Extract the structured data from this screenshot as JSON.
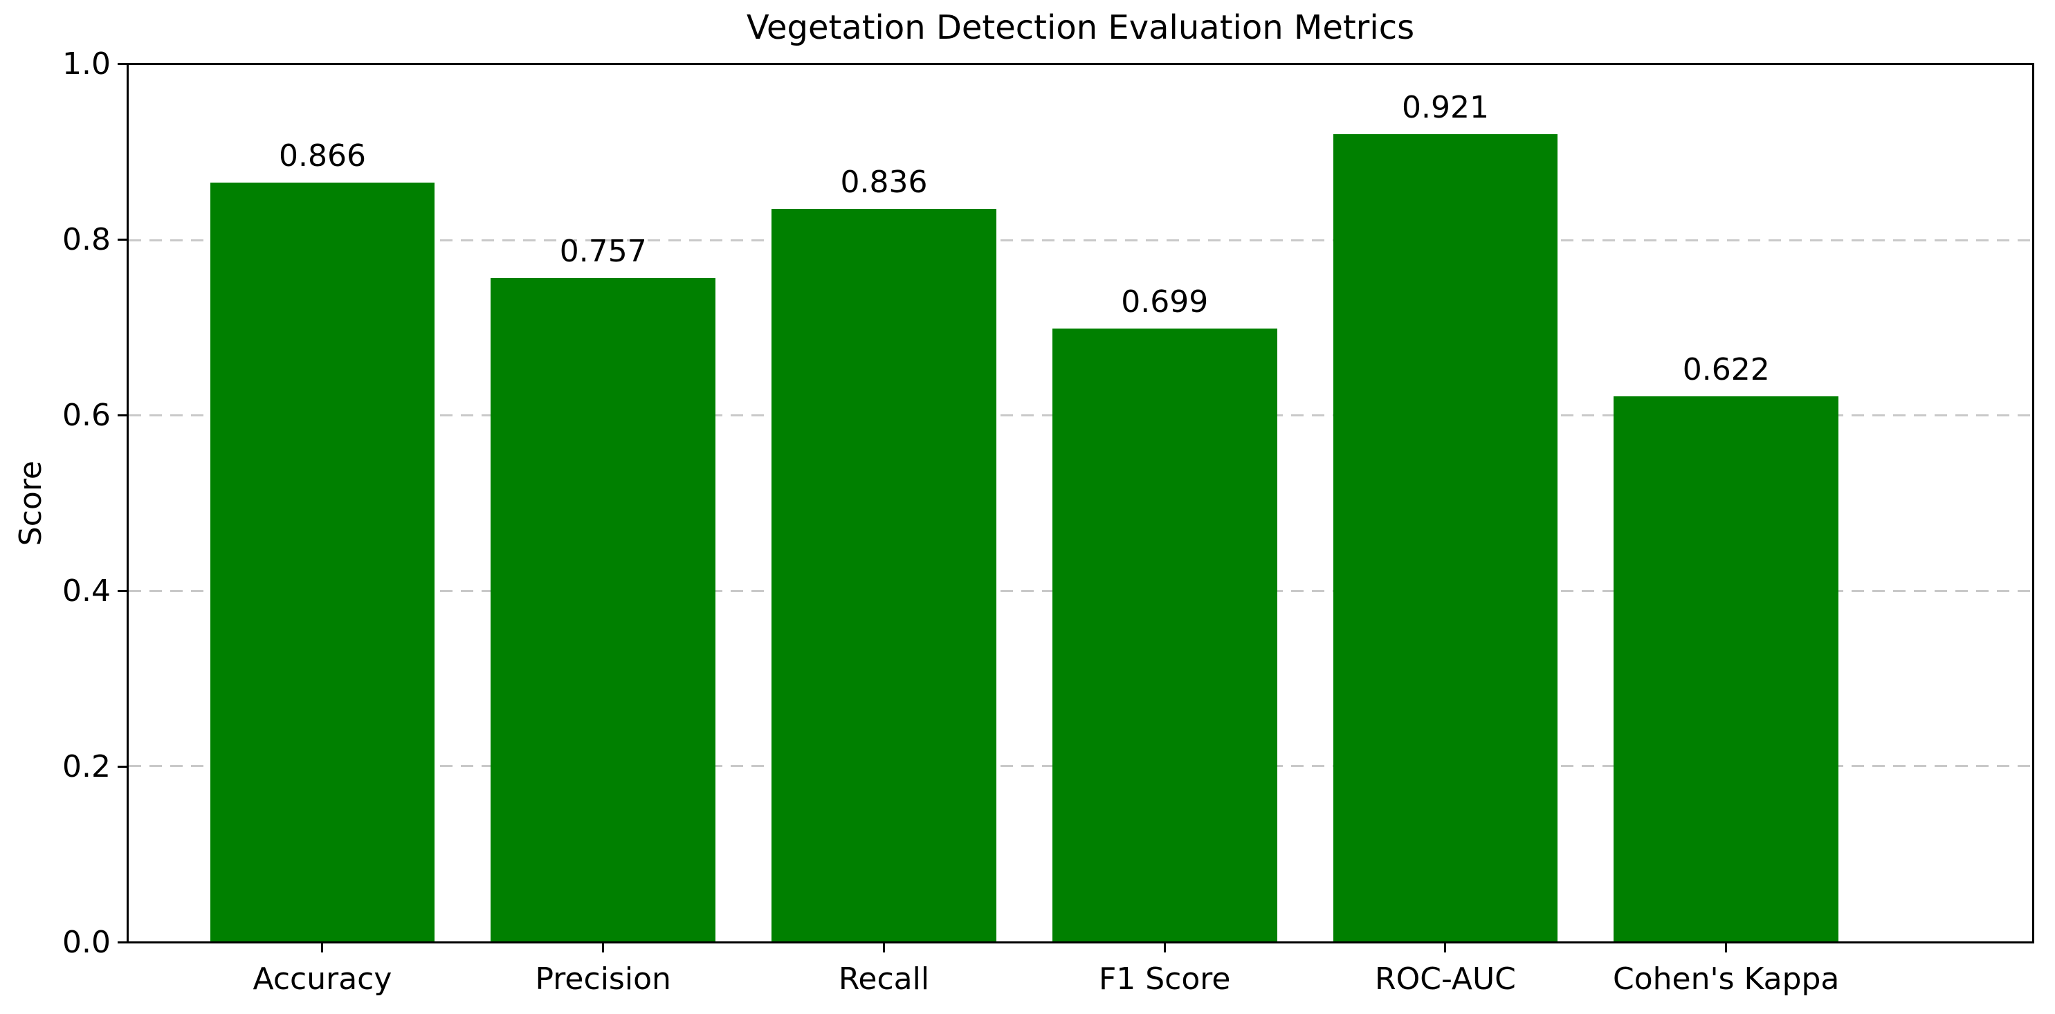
{
  "chart_data": {
    "type": "bar",
    "title": "Vegetation Detection Evaluation Metrics",
    "xlabel": "",
    "ylabel": "Score",
    "categories": [
      "Accuracy",
      "Precision",
      "Recall",
      "F1 Score",
      "ROC-AUC",
      "Cohen's Kappa"
    ],
    "values": [
      0.866,
      0.757,
      0.836,
      0.699,
      0.921,
      0.622
    ],
    "value_labels": [
      "0.866",
      "0.757",
      "0.836",
      "0.699",
      "0.921",
      "0.622"
    ],
    "ylim": [
      0.0,
      1.0
    ],
    "yticks": [
      0.0,
      0.2,
      0.4,
      0.6,
      0.8,
      1.0
    ],
    "ytick_labels": [
      "0.0",
      "0.2",
      "0.4",
      "0.6",
      "0.8",
      "1.0"
    ],
    "grid": "horizontal-dashed",
    "gridline_values": [
      0.2,
      0.4,
      0.6,
      0.8
    ],
    "legend_position": "none",
    "colors": {
      "bar": "#008000",
      "grid": "#c9c9c9",
      "axis": "#000000",
      "text": "#000000",
      "background": "#ffffff"
    }
  }
}
